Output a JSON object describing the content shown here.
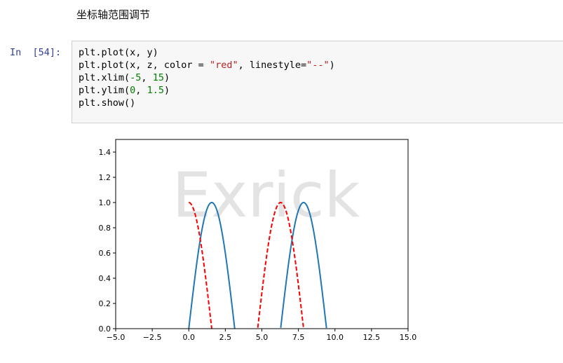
{
  "markdown": {
    "heading": "坐标轴范围调节"
  },
  "cell": {
    "prompt": "In  [54]:",
    "lines": [
      [
        {
          "t": "plt.plot(x, y)",
          "c": "fn"
        }
      ],
      [
        {
          "t": "plt.plot(x, z, color = ",
          "c": "fn"
        },
        {
          "t": "\"red\"",
          "c": "str"
        },
        {
          "t": ", linestyle=",
          "c": "fn"
        },
        {
          "t": "\"--\"",
          "c": "str"
        },
        {
          "t": ")",
          "c": "p"
        }
      ],
      [
        {
          "t": "plt.xlim(",
          "c": "fn"
        },
        {
          "t": "-5",
          "c": "num"
        },
        {
          "t": ", ",
          "c": "p"
        },
        {
          "t": "15",
          "c": "num"
        },
        {
          "t": ")",
          "c": "p"
        }
      ],
      [
        {
          "t": "plt.ylim(",
          "c": "fn"
        },
        {
          "t": "0",
          "c": "num"
        },
        {
          "t": ", ",
          "c": "p"
        },
        {
          "t": "1.5",
          "c": "num"
        },
        {
          "t": ")",
          "c": "p"
        }
      ],
      [
        {
          "t": "plt.show()",
          "c": "fn"
        }
      ]
    ]
  },
  "watermark": "Exrick",
  "chart_data": {
    "type": "line",
    "xlim": [
      -5,
      15
    ],
    "ylim": [
      0,
      1.5
    ],
    "xticks": [
      "−5.0",
      "−2.5",
      "0.0",
      "2.5",
      "5.0",
      "7.5",
      "10.0",
      "12.5",
      "15.0"
    ],
    "xtick_values": [
      -5,
      -2.5,
      0,
      2.5,
      5,
      7.5,
      10,
      12.5,
      15
    ],
    "yticks": [
      "0.0",
      "0.2",
      "0.4",
      "0.6",
      "0.8",
      "1.0",
      "1.2",
      "1.4"
    ],
    "ytick_values": [
      0,
      0.2,
      0.4,
      0.6,
      0.8,
      1.0,
      1.2,
      1.4
    ],
    "grid": false,
    "series": [
      {
        "function": "sin",
        "x_domain": [
          0,
          10
        ],
        "color": "#1f77b4",
        "linestyle": "solid",
        "show": "y >= 0"
      },
      {
        "function": "cos",
        "x_domain": [
          0,
          10
        ],
        "color": "#ff0000",
        "linestyle": "dashed",
        "show": "y >= 0"
      }
    ]
  }
}
